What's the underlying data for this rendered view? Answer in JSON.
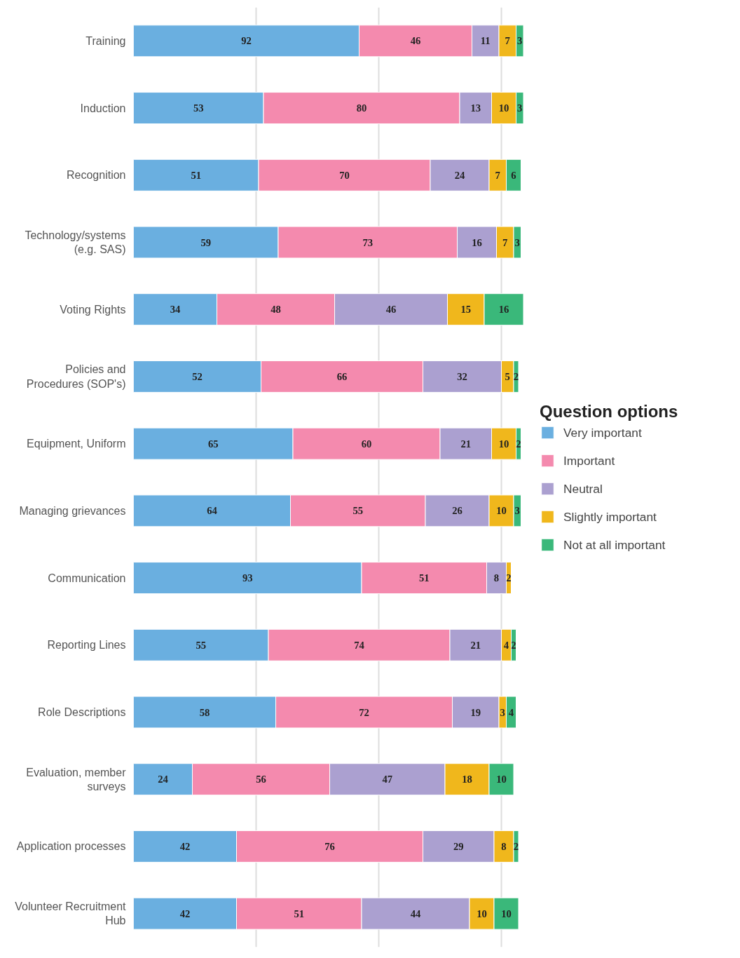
{
  "chart_data": {
    "type": "bar",
    "orientation": "horizontal",
    "stacked": true,
    "data_labels": true,
    "legend": "right",
    "legend_title": "Question options",
    "grid": "x",
    "tick_labels": "y",
    "xlim": [
      0,
      160
    ],
    "xticks": [
      {
        "value": 50,
        "label": null
      },
      {
        "value": 100,
        "label": null
      },
      {
        "value": 150,
        "label": null
      }
    ],
    "categories": [
      "Training",
      "Induction",
      "Recognition",
      "Technology/systems (e.g. SAS)",
      "Voting Rights",
      "Policies and Procedures (SOP's)",
      "Equipment, Uniform",
      "Managing grievances",
      "Communication",
      "Reporting Lines",
      "Role Descriptions",
      "Evaluation, member surveys",
      "Application processes",
      "Volunteer Recruitment Hub"
    ],
    "series": [
      {
        "name": "Very important",
        "color": "#6aafe0",
        "values": [
          92,
          53,
          51,
          59,
          34,
          52,
          65,
          64,
          93,
          55,
          58,
          24,
          42,
          42
        ]
      },
      {
        "name": "Important",
        "color": "#f48aae",
        "values": [
          46,
          80,
          70,
          73,
          48,
          66,
          60,
          55,
          51,
          74,
          72,
          56,
          76,
          51
        ]
      },
      {
        "name": "Neutral",
        "color": "#aba0d0",
        "values": [
          11,
          13,
          24,
          16,
          46,
          32,
          21,
          26,
          8,
          21,
          19,
          47,
          29,
          44
        ]
      },
      {
        "name": "Slightly important",
        "color": "#f0b71c",
        "values": [
          7,
          10,
          7,
          7,
          15,
          5,
          10,
          10,
          2,
          4,
          3,
          18,
          8,
          10
        ]
      },
      {
        "name": "Not at all important",
        "color": "#3ab87a",
        "values": [
          3,
          3,
          6,
          3,
          16,
          2,
          2,
          3,
          null,
          2,
          4,
          10,
          2,
          10
        ]
      }
    ]
  }
}
